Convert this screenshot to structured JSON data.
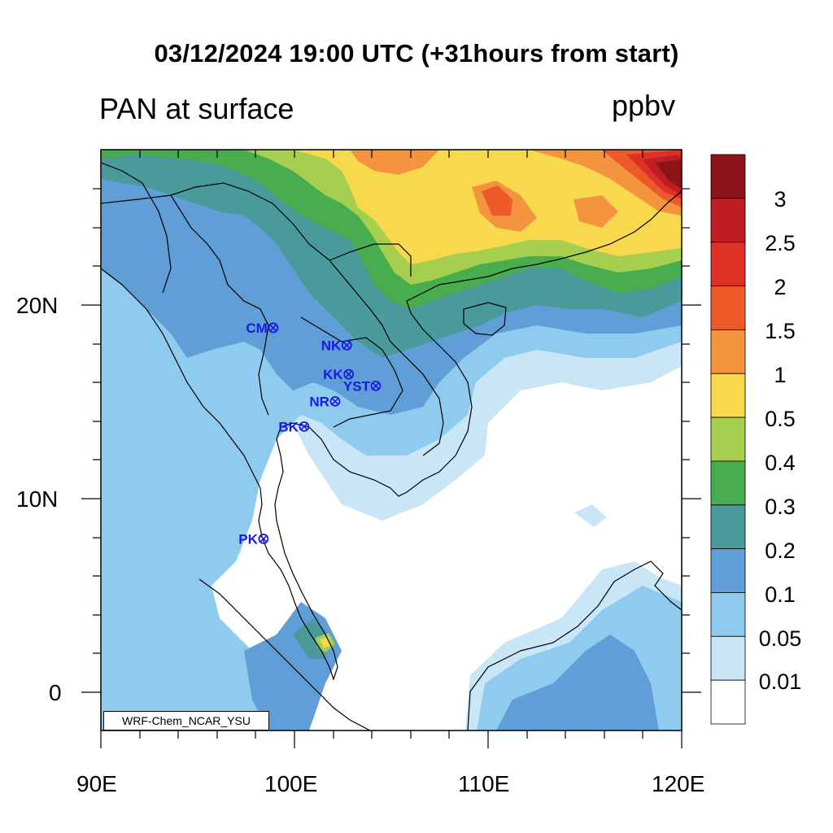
{
  "header": {
    "title": "03/12/2024 19:00 UTC (+31hours from start)",
    "subtitle": "PAN at surface",
    "units": "ppbv"
  },
  "map": {
    "extent": {
      "lon": [
        90,
        120
      ],
      "lat": [
        -2,
        28
      ]
    },
    "x_tick_labels": [
      "90E",
      "100E",
      "110E",
      "120E"
    ],
    "y_tick_labels": [
      "0",
      "10N",
      "20N"
    ],
    "credit": "WRF-Chem_NCAR_YSU",
    "stations": [
      {
        "name": "CM",
        "lon": 98.9,
        "lat": 18.8
      },
      {
        "name": "NK",
        "lon": 102.7,
        "lat": 17.9
      },
      {
        "name": "KK",
        "lon": 102.8,
        "lat": 16.4
      },
      {
        "name": "YST",
        "lon": 104.2,
        "lat": 15.8
      },
      {
        "name": "NR",
        "lon": 102.1,
        "lat": 15.0
      },
      {
        "name": "BK",
        "lon": 100.5,
        "lat": 13.7
      },
      {
        "name": "PK",
        "lon": 98.4,
        "lat": 7.9
      }
    ]
  },
  "colorbar": {
    "labels": [
      "3",
      "2.5",
      "2",
      "1.5",
      "1",
      "0.5",
      "0.4",
      "0.3",
      "0.2",
      "0.1",
      "0.05",
      "0.01"
    ],
    "colors": [
      "#8b1419",
      "#bf1e24",
      "#dd3127",
      "#ec5a2a",
      "#f5943f",
      "#f8d94e",
      "#a7cf4f",
      "#48ad4f",
      "#4a9a9b",
      "#5f9ed6",
      "#8ecbef",
      "#c9e6f6",
      "#ffffff"
    ],
    "station_color": "#1a1ae6"
  }
}
